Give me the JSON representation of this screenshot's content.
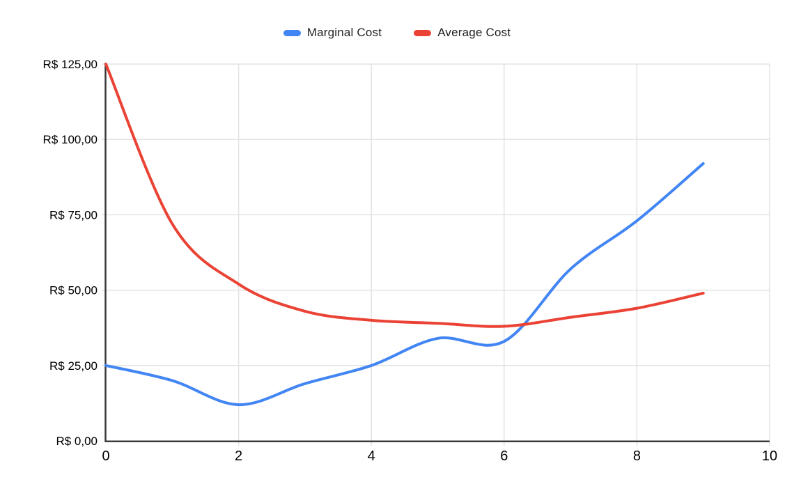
{
  "chart_data": {
    "type": "line",
    "title": "",
    "curve": "smooth",
    "x": [
      0,
      1,
      2,
      3,
      4,
      5,
      6,
      7,
      8,
      9
    ],
    "series": [
      {
        "name": "Marginal Cost",
        "color": "#4285f4",
        "values": [
          25,
          20,
          12,
          19,
          25,
          34,
          33,
          57,
          73,
          92
        ]
      },
      {
        "name": "Average Cost",
        "color": "#ea4335",
        "values": [
          125,
          72,
          52,
          43,
          40,
          39,
          38,
          41,
          44,
          49
        ]
      }
    ],
    "xlabel": "",
    "ylabel": "",
    "xlim": [
      0,
      10
    ],
    "ylim": [
      0,
      125
    ],
    "x_tick_values": [
      0,
      2,
      4,
      6,
      8,
      10
    ],
    "x_tick_labels": [
      "0",
      "2",
      "4",
      "6",
      "8",
      "10"
    ],
    "y_tick_values": [
      0,
      25,
      50,
      75,
      100,
      125
    ],
    "y_tick_labels": [
      "R$ 0,00",
      "R$ 25,00",
      "R$ 50,00",
      "R$ 75,00",
      "R$ 100,00",
      "R$ 125,00"
    ],
    "grid": true,
    "legend_position": "top"
  },
  "legend": {
    "items": [
      {
        "label": "Marginal Cost",
        "color": "#4285f4"
      },
      {
        "label": "Average Cost",
        "color": "#ea4335"
      }
    ]
  },
  "style": {
    "background": "#ffffff",
    "gridline_color": "#e3e3e3",
    "axis_color": "#3c3c3c",
    "tick_label_color": "#000000",
    "line_width": 4
  }
}
